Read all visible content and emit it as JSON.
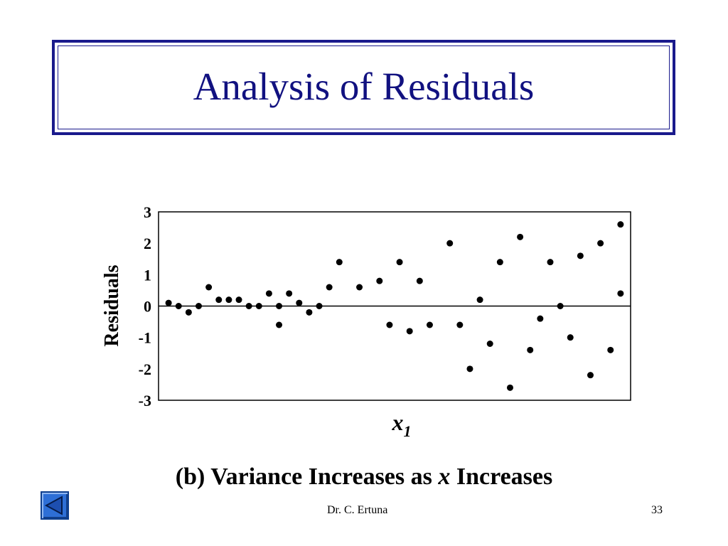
{
  "slide": {
    "title": "Analysis of Residuals",
    "caption_prefix": "(b) Variance Increases as ",
    "caption_italic": "x",
    "caption_suffix": " Increases",
    "author": "Dr. C. Ertuna",
    "page_number": "33",
    "nav_icon": "back-triangle-icon",
    "colors": {
      "title": "#111180",
      "border": "#1a1a8c",
      "nav_button": "#2e6fd6"
    }
  },
  "chart_data": {
    "type": "scatter",
    "ylabel": "Residuals",
    "xlabel_base": "x",
    "xlabel_sub": "1",
    "ylim": [
      -3,
      3
    ],
    "yticks": [
      "3",
      "2",
      "1",
      "0",
      "-1",
      "-2",
      "-3"
    ],
    "zero_line": true,
    "grid": false,
    "series": [
      {
        "points": [
          [
            1,
            0.1
          ],
          [
            2,
            0.0
          ],
          [
            3,
            -0.2
          ],
          [
            4,
            0.0
          ],
          [
            5,
            0.6
          ],
          [
            6,
            0.2
          ],
          [
            7,
            0.2
          ],
          [
            8,
            0.2
          ],
          [
            9,
            0.0
          ],
          [
            10,
            0.0
          ],
          [
            11,
            0.4
          ],
          [
            12,
            0.0
          ],
          [
            12,
            -0.6
          ],
          [
            13,
            0.4
          ],
          [
            14,
            0.1
          ],
          [
            15,
            -0.2
          ],
          [
            16,
            0.0
          ],
          [
            17,
            0.6
          ],
          [
            18,
            1.4
          ],
          [
            20,
            0.6
          ],
          [
            22,
            0.8
          ],
          [
            23,
            -0.6
          ],
          [
            24,
            1.4
          ],
          [
            25,
            -0.8
          ],
          [
            26,
            0.8
          ],
          [
            27,
            -0.6
          ],
          [
            29,
            2.0
          ],
          [
            30,
            -0.6
          ],
          [
            31,
            -2.0
          ],
          [
            32,
            0.2
          ],
          [
            33,
            -1.2
          ],
          [
            34,
            1.4
          ],
          [
            35,
            -2.6
          ],
          [
            36,
            2.2
          ],
          [
            37,
            -1.4
          ],
          [
            38,
            -0.4
          ],
          [
            39,
            1.4
          ],
          [
            40,
            0.0
          ],
          [
            41,
            -1.0
          ],
          [
            42,
            1.6
          ],
          [
            43,
            -2.2
          ],
          [
            44,
            2.0
          ],
          [
            45,
            -1.4
          ],
          [
            46,
            2.6
          ],
          [
            46,
            0.4
          ]
        ]
      }
    ]
  }
}
